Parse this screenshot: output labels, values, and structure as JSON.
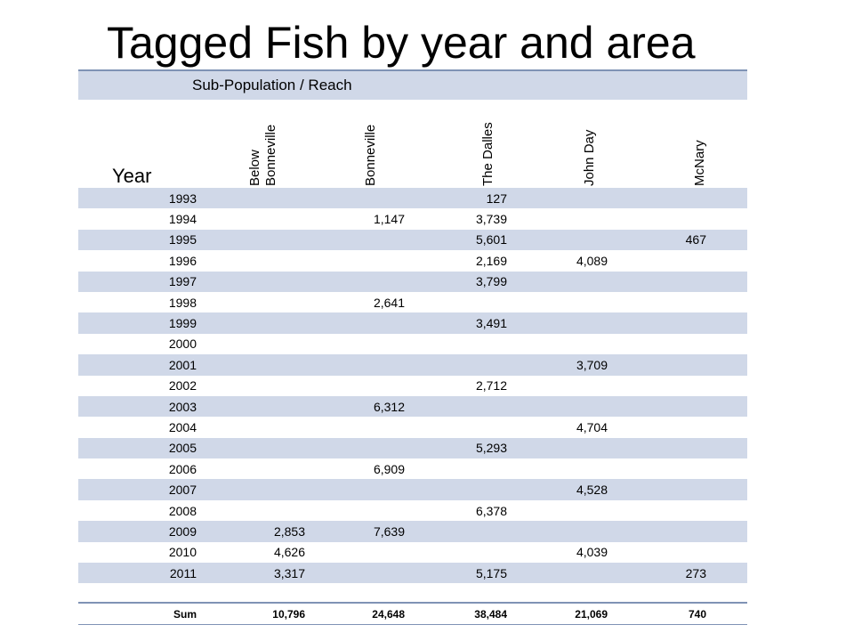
{
  "title": "Tagged Fish by year and area",
  "table": {
    "group_header": "Sub-Population / Reach",
    "year_header": "Year",
    "columns": [
      "Below Bonneville",
      "Bonneville",
      "The Dalles",
      "John Day",
      "McNary"
    ],
    "rows": [
      {
        "year": "1993",
        "values": [
          "",
          "",
          "127",
          "",
          ""
        ]
      },
      {
        "year": "1994",
        "values": [
          "",
          "1,147",
          "3,739",
          "",
          ""
        ]
      },
      {
        "year": "1995",
        "values": [
          "",
          "",
          "5,601",
          "",
          "467"
        ]
      },
      {
        "year": "1996",
        "values": [
          "",
          "",
          "2,169",
          "4,089",
          ""
        ]
      },
      {
        "year": "1997",
        "values": [
          "",
          "",
          "3,799",
          "",
          ""
        ]
      },
      {
        "year": "1998",
        "values": [
          "",
          "2,641",
          "",
          "",
          ""
        ]
      },
      {
        "year": "1999",
        "values": [
          "",
          "",
          "3,491",
          "",
          ""
        ]
      },
      {
        "year": "2000",
        "values": [
          "",
          "",
          "",
          "",
          ""
        ]
      },
      {
        "year": "2001",
        "values": [
          "",
          "",
          "",
          "3,709",
          ""
        ]
      },
      {
        "year": "2002",
        "values": [
          "",
          "",
          "2,712",
          "",
          ""
        ]
      },
      {
        "year": "2003",
        "values": [
          "",
          "6,312",
          "",
          "",
          ""
        ]
      },
      {
        "year": "2004",
        "values": [
          "",
          "",
          "",
          "4,704",
          ""
        ]
      },
      {
        "year": "2005",
        "values": [
          "",
          "",
          "5,293",
          "",
          ""
        ]
      },
      {
        "year": "2006",
        "values": [
          "",
          "6,909",
          "",
          "",
          ""
        ]
      },
      {
        "year": "2007",
        "values": [
          "",
          "",
          "",
          "4,528",
          ""
        ]
      },
      {
        "year": "2008",
        "values": [
          "",
          "",
          "6,378",
          "",
          ""
        ]
      },
      {
        "year": "2009",
        "values": [
          "2,853",
          "7,639",
          "",
          "",
          ""
        ]
      },
      {
        "year": "2010",
        "values": [
          "4,626",
          "",
          "",
          "4,039",
          ""
        ]
      },
      {
        "year": "2011",
        "values": [
          "3,317",
          "",
          "5,175",
          "",
          "273"
        ]
      }
    ],
    "sum": {
      "label": "Sum",
      "values": [
        "10,796",
        "24,648",
        "38,484",
        "21,069",
        "740"
      ]
    }
  },
  "colors": {
    "band": "#d0d8e8",
    "rule": "#7f93b5"
  }
}
